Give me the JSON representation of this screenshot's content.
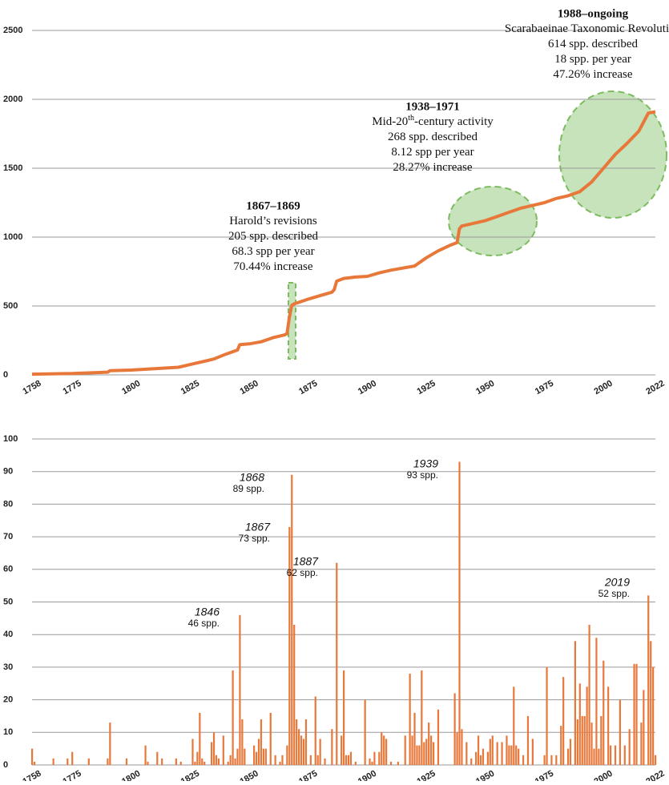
{
  "chart_data": [
    {
      "type": "line",
      "color": "#e8783a",
      "grid": true,
      "x": [
        1758,
        1775,
        1790,
        1791,
        1800,
        1810,
        1820,
        1825,
        1830,
        1835,
        1840,
        1845,
        1846,
        1850,
        1855,
        1860,
        1865,
        1866,
        1867,
        1868,
        1869,
        1875,
        1880,
        1885,
        1886,
        1887,
        1890,
        1895,
        1900,
        1905,
        1910,
        1915,
        1920,
        1925,
        1930,
        1935,
        1938,
        1939,
        1940,
        1945,
        1950,
        1955,
        1960,
        1965,
        1970,
        1975,
        1980,
        1985,
        1990,
        1995,
        2000,
        2005,
        2010,
        2015,
        2019,
        2022
      ],
      "values": [
        5,
        10,
        20,
        30,
        35,
        45,
        55,
        75,
        95,
        115,
        150,
        180,
        220,
        225,
        240,
        270,
        290,
        300,
        420,
        505,
        515,
        550,
        575,
        600,
        620,
        680,
        700,
        710,
        715,
        740,
        760,
        775,
        790,
        850,
        900,
        940,
        960,
        1060,
        1080,
        1100,
        1120,
        1150,
        1180,
        1210,
        1230,
        1250,
        1280,
        1300,
        1330,
        1400,
        1500,
        1600,
        1680,
        1770,
        1900,
        1910
      ],
      "xlim": [
        1758,
        2022
      ],
      "xticks": [
        1758,
        1775,
        1800,
        1825,
        1850,
        1875,
        1900,
        1925,
        1950,
        1975,
        2000,
        2022
      ],
      "ylim": [
        0,
        2500
      ],
      "yticks": [
        0,
        500,
        1000,
        1500,
        2000,
        2500
      ],
      "annotations": [
        {
          "title": "1867–1869",
          "lines": [
            [
              "Harold’s revisions"
            ],
            [
              "205 spp. described"
            ],
            [
              "68.3 spp per year"
            ],
            [
              "70.44% increase"
            ]
          ]
        },
        {
          "title": "1938–1971",
          "lines": [
            [
              "Mid-20",
              "th",
              "-century activity"
            ],
            [
              "268 spp. described"
            ],
            [
              "8.12 spp per year"
            ],
            [
              "28.27% increase"
            ]
          ]
        },
        {
          "title": "1988–ongoing",
          "lines": [
            [
              "Scarabaeinae Taxonomic Revolution"
            ],
            [
              "614 spp. described"
            ],
            [
              "18 spp. per year"
            ],
            [
              "47.26% increase"
            ]
          ]
        }
      ]
    },
    {
      "type": "bar",
      "color": "#e8783a",
      "grid": true,
      "x": [
        1758,
        1759,
        1767,
        1773,
        1775,
        1782,
        1790,
        1791,
        1798,
        1806,
        1807,
        1811,
        1813,
        1819,
        1821,
        1826,
        1827,
        1828,
        1829,
        1830,
        1831,
        1834,
        1835,
        1836,
        1837,
        1839,
        1841,
        1842,
        1843,
        1844,
        1845,
        1846,
        1847,
        1848,
        1852,
        1853,
        1854,
        1855,
        1856,
        1857,
        1859,
        1861,
        1863,
        1864,
        1866,
        1867,
        1868,
        1869,
        1870,
        1871,
        1872,
        1873,
        1874,
        1876,
        1878,
        1879,
        1880,
        1882,
        1885,
        1887,
        1889,
        1890,
        1891,
        1892,
        1893,
        1895,
        1899,
        1901,
        1902,
        1903,
        1905,
        1906,
        1907,
        1908,
        1910,
        1913,
        1916,
        1918,
        1919,
        1920,
        1921,
        1922,
        1923,
        1924,
        1925,
        1926,
        1927,
        1928,
        1930,
        1937,
        1938,
        1939,
        1940,
        1942,
        1944,
        1946,
        1947,
        1948,
        1949,
        1951,
        1952,
        1953,
        1955,
        1957,
        1959,
        1960,
        1961,
        1962,
        1963,
        1964,
        1966,
        1968,
        1970,
        1975,
        1976,
        1978,
        1980,
        1982,
        1983,
        1985,
        1986,
        1988,
        1989,
        1990,
        1991,
        1992,
        1993,
        1994,
        1995,
        1996,
        1997,
        1998,
        1999,
        2000,
        2002,
        2003,
        2005,
        2007,
        2009,
        2011,
        2013,
        2014,
        2016,
        2017,
        2019,
        2020,
        2021,
        2022
      ],
      "values": [
        5,
        1,
        2,
        2,
        4,
        2,
        2,
        13,
        2,
        6,
        1,
        4,
        2,
        2,
        1,
        8,
        1,
        4,
        16,
        2,
        1,
        7,
        10,
        3,
        2,
        9,
        1,
        3,
        29,
        2,
        5,
        46,
        14,
        5,
        6,
        4,
        8,
        14,
        5,
        5,
        16,
        3,
        1,
        3,
        6,
        73,
        89,
        43,
        14,
        11,
        9,
        8,
        14,
        3,
        21,
        3,
        8,
        2,
        11,
        62,
        9,
        29,
        3,
        3,
        4,
        1,
        20,
        2,
        1,
        4,
        4,
        10,
        9,
        8,
        1,
        1,
        9,
        28,
        9,
        16,
        6,
        6,
        29,
        7,
        8,
        13,
        9,
        7,
        17,
        22,
        10,
        93,
        11,
        7,
        2,
        4,
        9,
        3,
        5,
        4,
        8,
        9,
        7,
        7,
        9,
        6,
        6,
        24,
        6,
        5,
        3,
        15,
        8,
        3,
        30,
        3,
        3,
        12,
        27,
        5,
        8,
        38,
        14,
        25,
        15,
        15,
        24,
        43,
        13,
        5,
        39,
        5,
        15,
        32,
        24,
        6,
        6,
        20,
        6,
        11,
        31,
        31,
        13,
        23,
        52,
        38,
        30,
        3
      ],
      "xlim": [
        1758,
        2022
      ],
      "xticks": [
        1758,
        1775,
        1800,
        1825,
        1850,
        1875,
        1900,
        1925,
        1950,
        1975,
        2000,
        2022
      ],
      "ylim": [
        0,
        100
      ],
      "yticks": [
        0,
        10,
        20,
        30,
        40,
        50,
        60,
        70,
        80,
        90,
        100
      ],
      "annotations": [
        {
          "title": "1846",
          "text": "46 spp."
        },
        {
          "title": "1868",
          "text": "89 spp."
        },
        {
          "title": "1867",
          "text": "73 spp."
        },
        {
          "title": "1887",
          "text": "62 spp."
        },
        {
          "title": "1939",
          "text": "93 spp."
        },
        {
          "title": "2019",
          "text": "52 spp."
        }
      ]
    }
  ]
}
